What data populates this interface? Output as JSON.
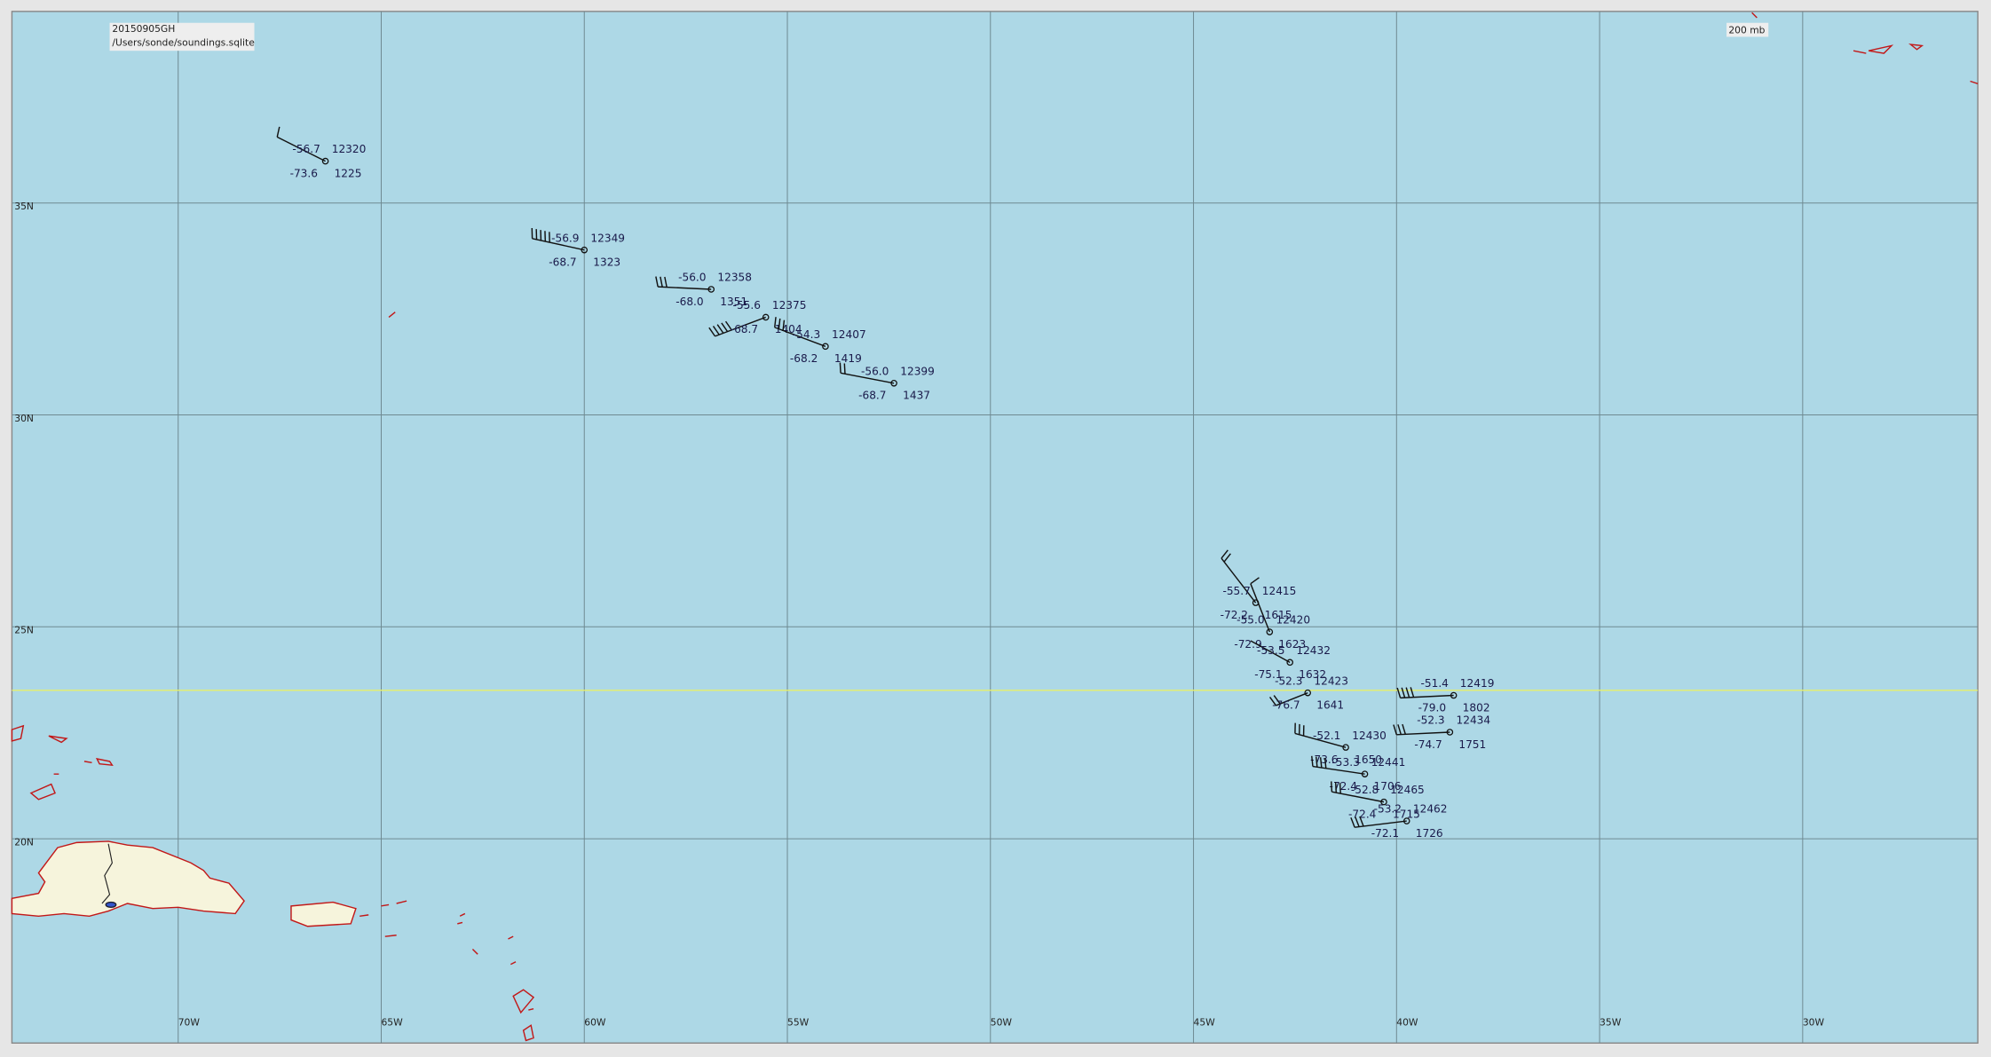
{
  "header": {
    "date": "20150905GH",
    "file": "/Users/sonde/soundings.sqlite"
  },
  "level": "200 mb",
  "lat_labels": [
    "35N",
    "30N",
    "25N",
    "20N"
  ],
  "lon_labels": [
    "70W",
    "65W",
    "60W",
    "55W",
    "50W",
    "45W",
    "40W",
    "35W",
    "30W"
  ],
  "stations": [
    {
      "temp": "-56.7",
      "dewpoint": "-73.6",
      "height": "12320",
      "time": "1225"
    },
    {
      "temp": "-56.9",
      "dewpoint": "-68.7",
      "height": "12349",
      "time": "1323"
    },
    {
      "temp": "-56.0",
      "dewpoint": "-68.0",
      "height": "12358",
      "time": "1351"
    },
    {
      "temp": "-55.6",
      "dewpoint": "-68.7",
      "height": "12375",
      "time": "1404"
    },
    {
      "temp": "-54.3",
      "dewpoint": "-68.2",
      "height": "12407",
      "time": "1419"
    },
    {
      "temp": "-56.0",
      "dewpoint": "-68.7",
      "height": "12399",
      "time": "1437"
    },
    {
      "temp": "-55.7",
      "dewpoint": "-72.2",
      "height": "12415",
      "time": "1615"
    },
    {
      "temp": "-55.0",
      "dewpoint": "-72.9",
      "height": "12420",
      "time": "1623"
    },
    {
      "temp": "-53.5",
      "dewpoint": "-75.1",
      "height": "12432",
      "time": "1632"
    },
    {
      "temp": "-52.3",
      "dewpoint": "-76.7",
      "height": "12423",
      "time": "1641"
    },
    {
      "temp": "-52.1",
      "dewpoint": "-73.6",
      "height": "12430",
      "time": "1650"
    },
    {
      "temp": "-53.3",
      "dewpoint": "-72.4",
      "height": "12441",
      "time": "1706"
    },
    {
      "temp": "-52.8",
      "dewpoint": "-72.4",
      "height": "12465",
      "time": "1715"
    },
    {
      "temp": "-53.2",
      "dewpoint": "-72.1",
      "height": "12462",
      "time": "1726"
    },
    {
      "temp": "-51.4",
      "dewpoint": "-79.0",
      "height": "12419",
      "time": "1802"
    },
    {
      "temp": "-52.3",
      "dewpoint": "-74.7",
      "height": "12434",
      "time": "1751"
    }
  ]
}
